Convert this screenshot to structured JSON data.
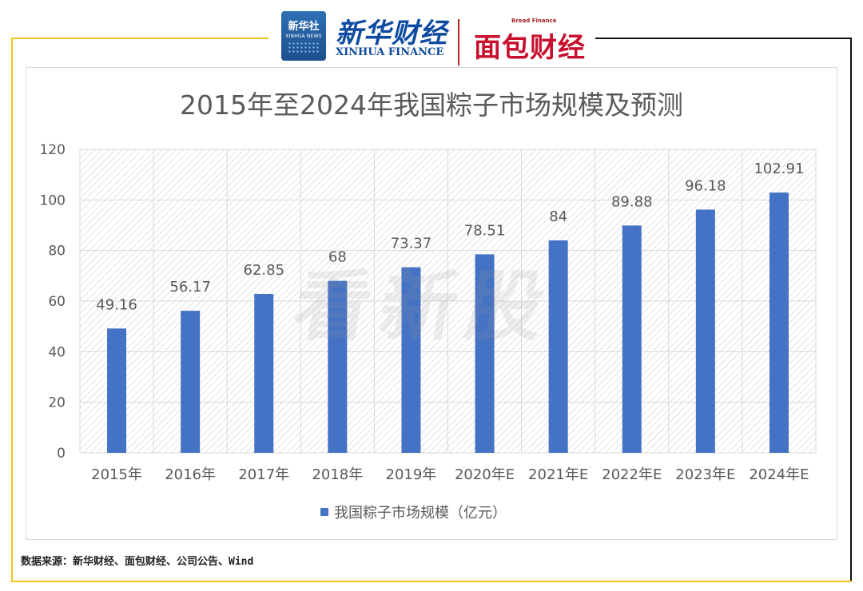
{
  "header": {
    "xinhua_badge_cn": "新华社",
    "xinhua_badge_en": "XINHUA NEWS",
    "xinhua_finance_cn": "新华财经",
    "xinhua_finance_en": "XINHUA FINANCE",
    "bread_finance_en": "Bread Finance",
    "bread_finance_cn": "面包财经"
  },
  "watermark": "看新股",
  "source": "数据来源：新华财经、面包财经、公司公告、Wind",
  "colors": {
    "bar": "#4472c4",
    "frame_accent": "#f0c419",
    "frame_dark": "#111111"
  },
  "chart_data": {
    "type": "bar",
    "title": "2015年至2024年我国粽子市场规模及预测",
    "categories": [
      "2015年",
      "2016年",
      "2017年",
      "2018年",
      "2019年",
      "2020年E",
      "2021年E",
      "2022年E",
      "2023年E",
      "2024年E"
    ],
    "series": [
      {
        "name": "我国粽子市场规模（亿元）",
        "values": [
          49.16,
          56.17,
          62.85,
          68,
          73.37,
          78.51,
          84,
          89.88,
          96.18,
          102.91
        ]
      }
    ],
    "value_labels": [
      "49.16",
      "56.17",
      "62.85",
      "68",
      "73.37",
      "78.51",
      "84",
      "89.88",
      "96.18",
      "102.91"
    ],
    "ylim": [
      0,
      120
    ],
    "yticks": [
      "0",
      "20",
      "40",
      "60",
      "80",
      "100",
      "120"
    ],
    "grid": true,
    "legend_position": "bottom"
  }
}
